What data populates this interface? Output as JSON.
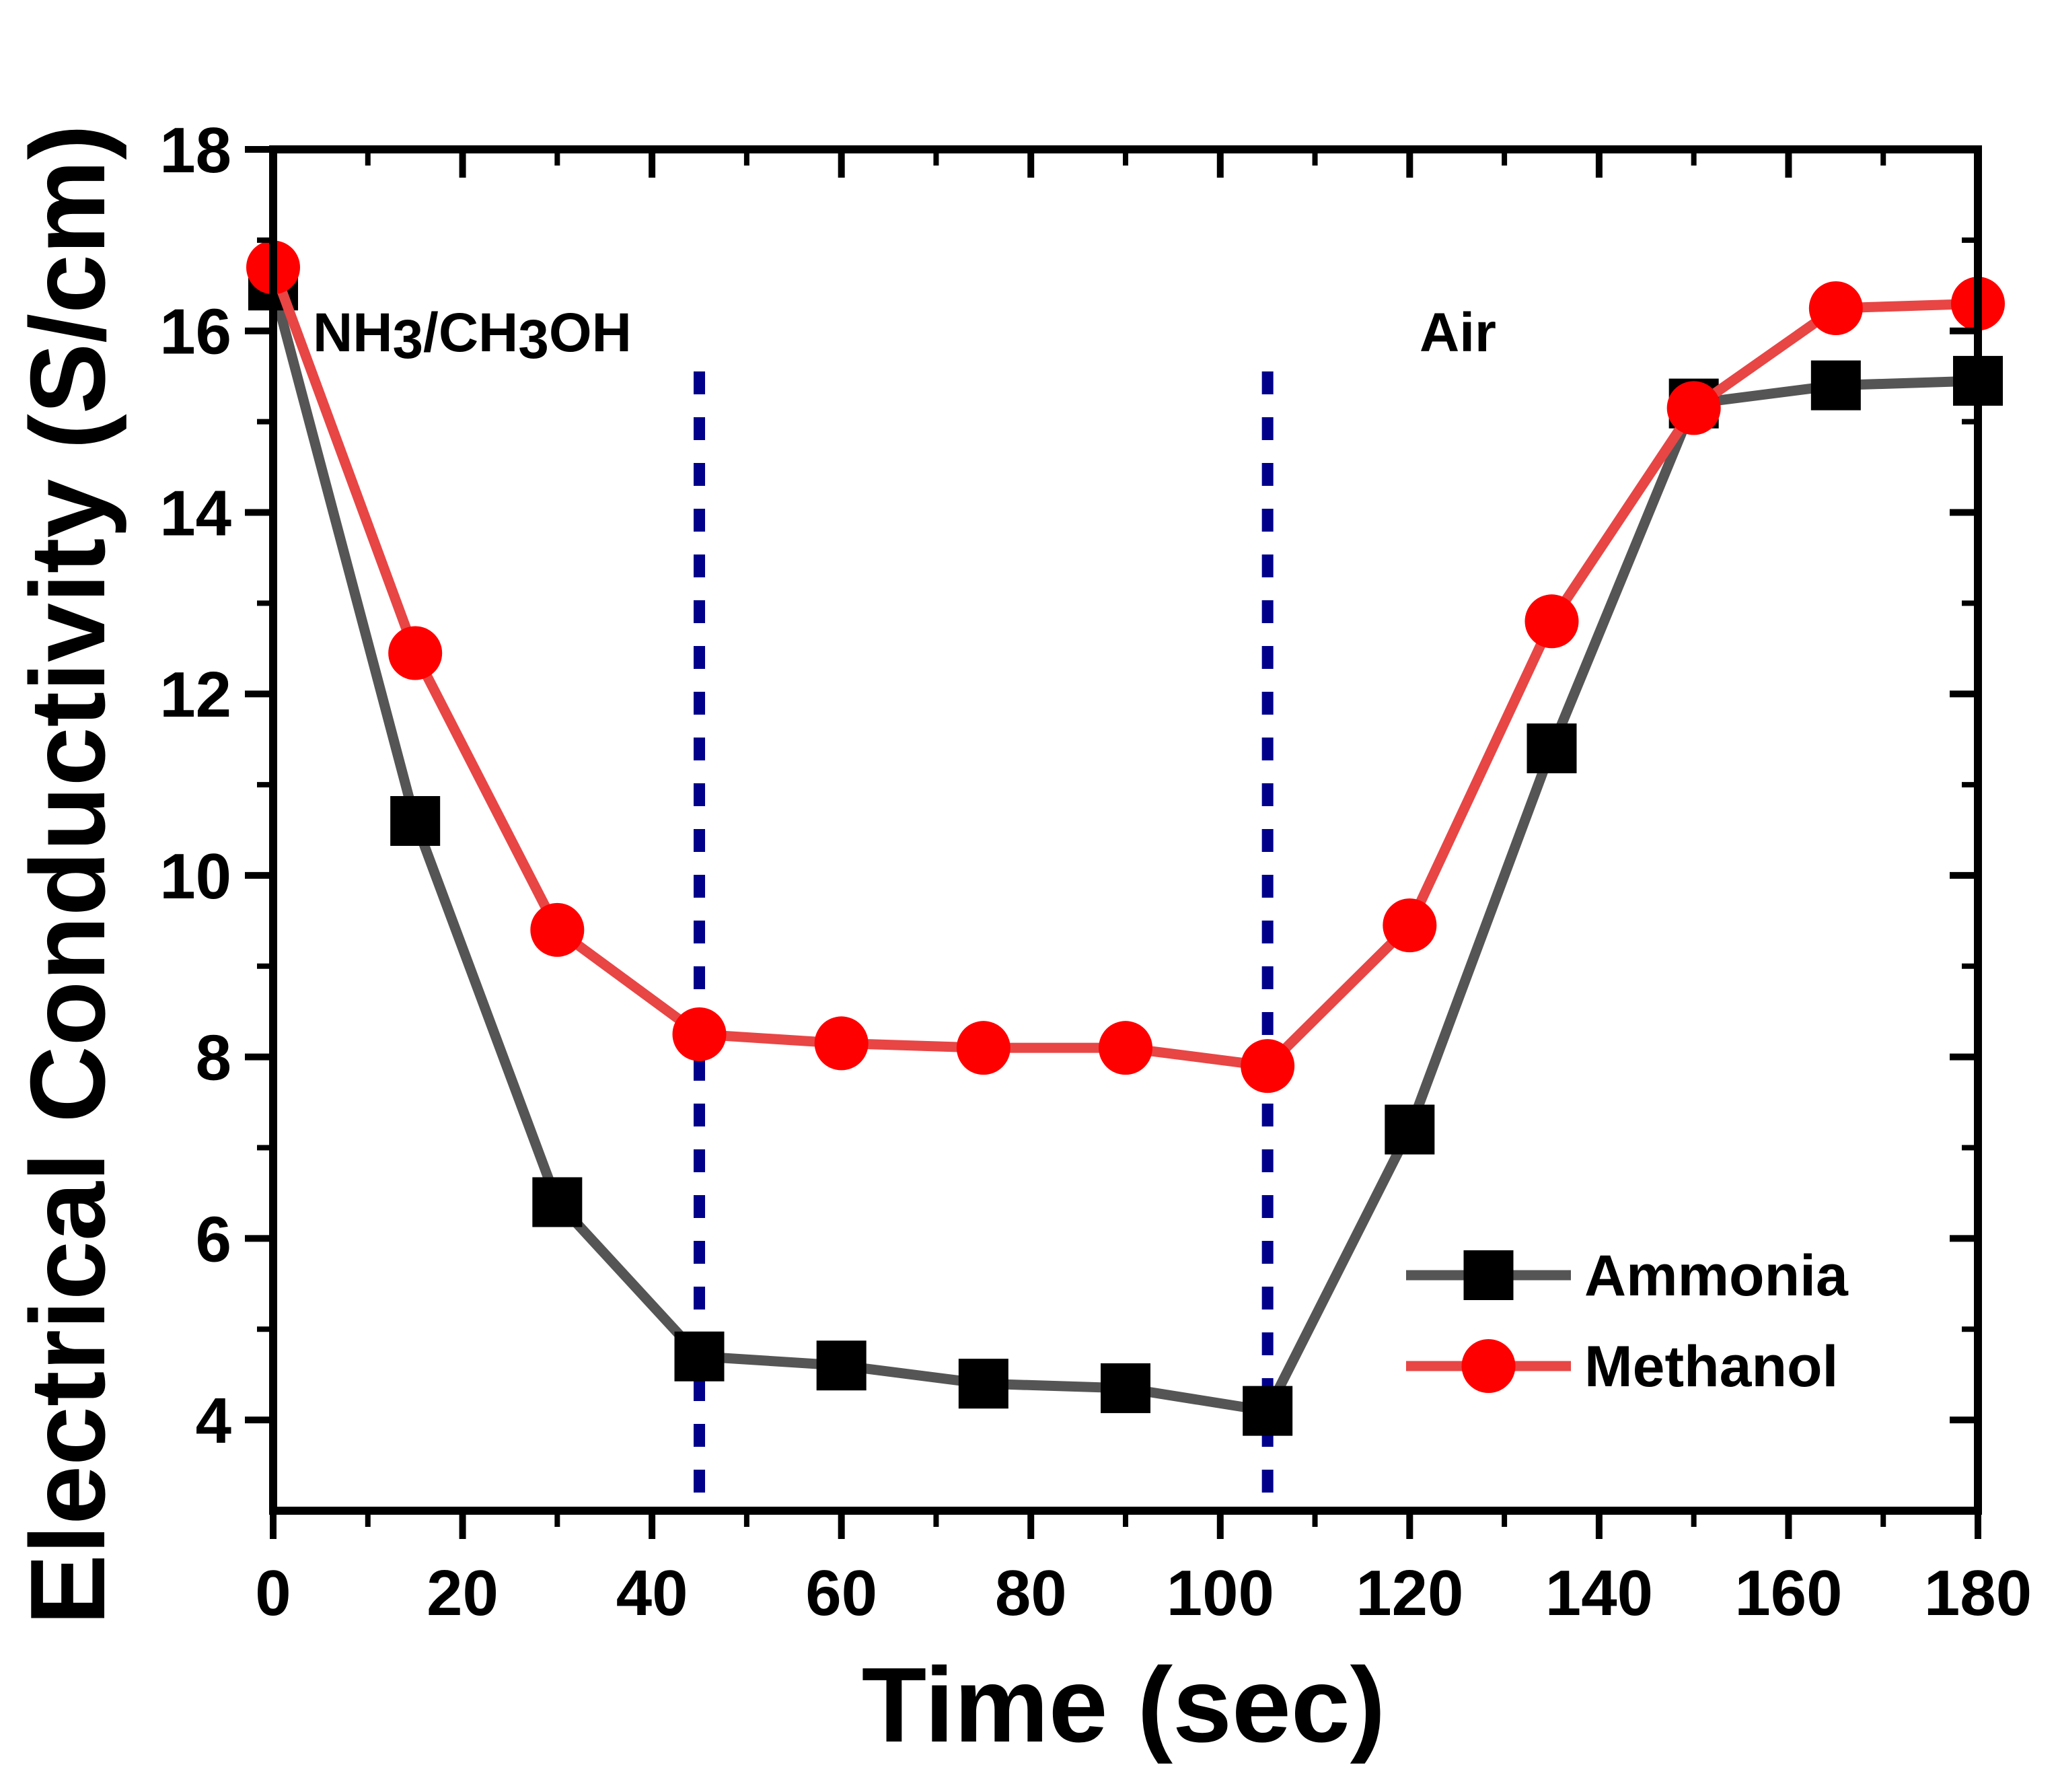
{
  "chart_data": {
    "type": "line",
    "title": "",
    "xlabel": "Time (sec)",
    "ylabel": "Electrical Conductivity (S/cm)",
    "xlim": [
      0,
      180
    ],
    "ylim": [
      3,
      18
    ],
    "x_ticks": [
      0,
      20,
      40,
      60,
      80,
      100,
      120,
      140,
      160,
      180
    ],
    "y_ticks": [
      4,
      6,
      8,
      10,
      12,
      14,
      16,
      18
    ],
    "x": [
      0,
      15,
      30,
      45,
      60,
      75,
      90,
      105,
      120,
      135,
      150,
      165,
      180
    ],
    "series": [
      {
        "name": "Ammonia",
        "color": "#555555",
        "marker": "square",
        "marker_color": "#000000",
        "values": [
          16.5,
          10.6,
          6.4,
          4.7,
          4.6,
          4.4,
          4.35,
          4.1,
          7.2,
          11.4,
          15.2,
          15.4,
          15.45
        ]
      },
      {
        "name": "Methanol",
        "color": "#e84545",
        "marker": "circle",
        "marker_color": "#ff0000",
        "values": [
          16.7,
          12.45,
          9.4,
          8.25,
          8.15,
          8.1,
          8.1,
          7.9,
          9.45,
          12.8,
          15.15,
          16.25,
          16.3
        ]
      }
    ],
    "vlines": [
      {
        "x": 45,
        "color": "#00008b",
        "style": "dotted"
      },
      {
        "x": 105,
        "color": "#00008b",
        "style": "dotted"
      }
    ],
    "annotations": {
      "exposure_prefix": "NH",
      "exposure_sub1": "3",
      "exposure_middle": "/CH",
      "exposure_sub2": "3",
      "exposure_suffix": "OH",
      "recovery": "Air"
    },
    "legend_position": "lower-right",
    "grid": false
  }
}
